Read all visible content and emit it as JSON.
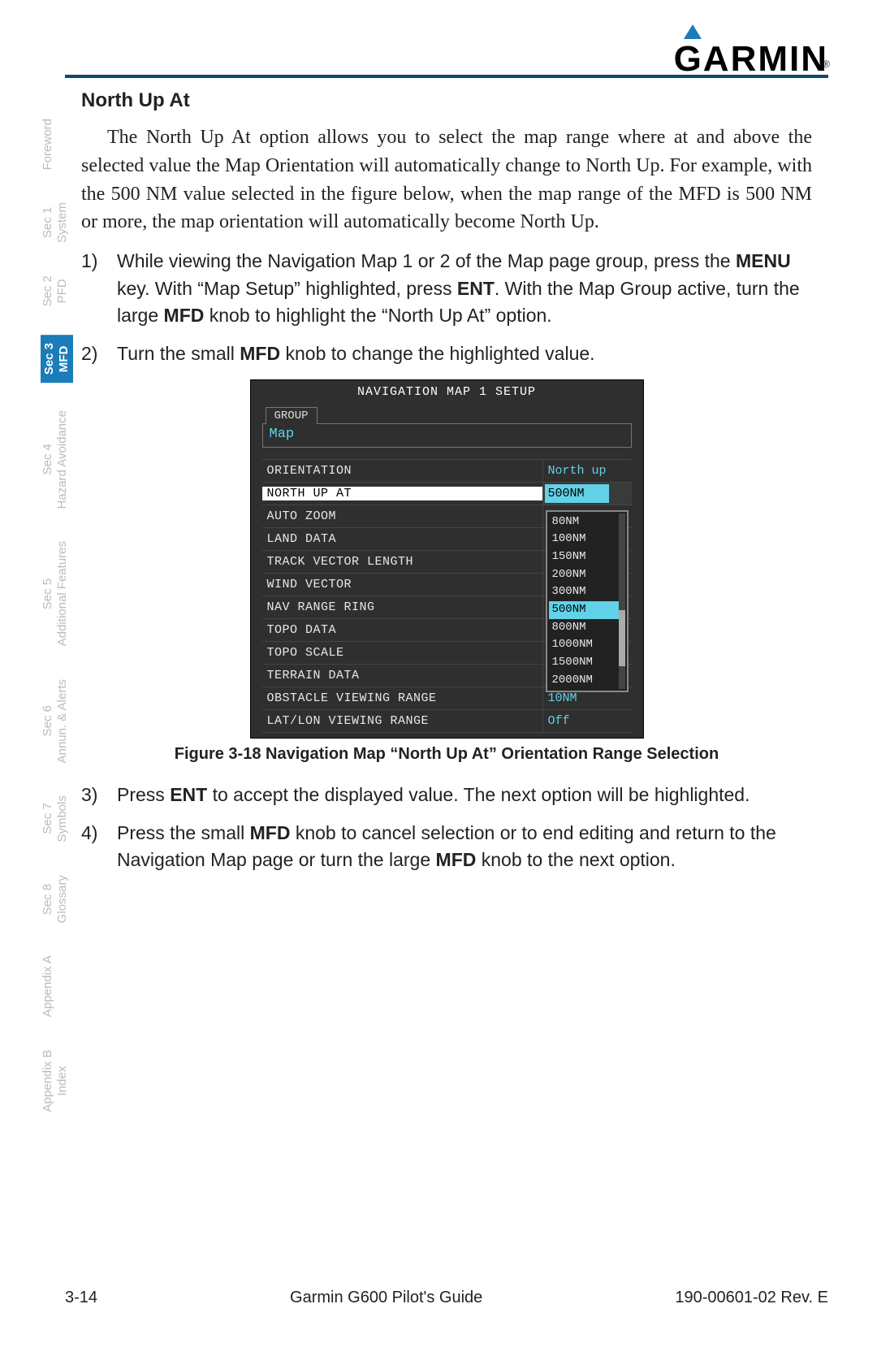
{
  "logo_text": "GARMIN",
  "sidebar": [
    {
      "line1": "Foreword",
      "line2": "",
      "active": false
    },
    {
      "line1": "Sec 1",
      "line2": "System",
      "active": false
    },
    {
      "line1": "Sec 2",
      "line2": "PFD",
      "active": false
    },
    {
      "line1": "Sec 3",
      "line2": "MFD",
      "active": true
    },
    {
      "line1": "Sec 4",
      "line2": "Hazard Avoidance",
      "active": false
    },
    {
      "line1": "Sec 5",
      "line2": "Additional Features",
      "active": false
    },
    {
      "line1": "Sec 6",
      "line2": "Annun. & Alerts",
      "active": false
    },
    {
      "line1": "Sec 7",
      "line2": "Symbols",
      "active": false
    },
    {
      "line1": "Sec 8",
      "line2": "Glossary",
      "active": false
    },
    {
      "line1": "Appendix A",
      "line2": "",
      "active": false
    },
    {
      "line1": "Appendix B",
      "line2": "Index",
      "active": false
    }
  ],
  "section_title": "North Up At",
  "intro_para": "The North Up At option allows you to select the map range where at and above the selected value the Map Orientation will automatically change to North Up. For example, with the 500 NM value selected in the figure below, when the map range of the MFD is 500 NM or more, the map orientation will automatically become North Up.",
  "step1": {
    "num": "1)",
    "pre": "While viewing the Navigation Map 1 or 2 of the Map page group, press the ",
    "b1": "MENU",
    "mid1": " key. With “Map Setup” highlighted, press ",
    "b2": "ENT",
    "mid2": ". With the Map Group active, turn the large ",
    "b3": "MFD",
    "post": " knob to highlight the “North Up At” option."
  },
  "step2": {
    "num": "2)",
    "pre": "Turn the small ",
    "b1": "MFD",
    "post": " knob to change the highlighted value."
  },
  "mfd": {
    "title": "NAVIGATION MAP 1 SETUP",
    "group_tab": "GROUP",
    "group_value": "Map",
    "rows": [
      {
        "label": "ORIENTATION",
        "value": "North up",
        "sel": false
      },
      {
        "label": "NORTH UP AT",
        "value": "500NM",
        "sel": true
      },
      {
        "label": "AUTO ZOOM",
        "value": "",
        "sel": false
      },
      {
        "label": "LAND DATA",
        "value": "",
        "sel": false
      },
      {
        "label": "TRACK VECTOR LENGTH",
        "value": "",
        "sel": false
      },
      {
        "label": "WIND VECTOR",
        "value": "",
        "sel": false
      },
      {
        "label": "NAV RANGE RING",
        "value": "",
        "sel": false
      },
      {
        "label": "TOPO DATA",
        "value": "",
        "sel": false
      },
      {
        "label": "TOPO SCALE",
        "value": "",
        "sel": false
      },
      {
        "label": "TERRAIN DATA",
        "value": "",
        "sel": false
      },
      {
        "label": "OBSTACLE VIEWING RANGE",
        "value": "10NM",
        "sel": false
      },
      {
        "label": "LAT/LON VIEWING RANGE",
        "value": "Off",
        "sel": false
      }
    ],
    "dropdown": [
      "80NM",
      "100NM",
      "150NM",
      "200NM",
      "300NM",
      "500NM",
      "800NM",
      "1000NM",
      "1500NM",
      "2000NM"
    ],
    "dropdown_hl": "500NM"
  },
  "fig_caption": "Figure 3-18  Navigation Map “North Up At” Orientation Range Selection",
  "step3": {
    "num": "3)",
    "pre": "Press ",
    "b1": "ENT",
    "post": " to accept the displayed value. The next option will be highlighted."
  },
  "step4": {
    "num": "4)",
    "pre": "Press the small ",
    "b1": "MFD",
    "mid1": " knob to cancel selection or to end editing and return to the Navigation Map page or turn the large ",
    "b2": "MFD",
    "post": " knob to the next option."
  },
  "footer": {
    "left": "3-14",
    "center": "Garmin G600 Pilot's Guide",
    "right": "190-00601-02  Rev. E"
  },
  "colors": {
    "rule": "#0a4a7a",
    "active_tab": "#1a7cb8",
    "mfd_bg": "#2f2f2f",
    "mfd_cyan": "#61d2e8"
  }
}
